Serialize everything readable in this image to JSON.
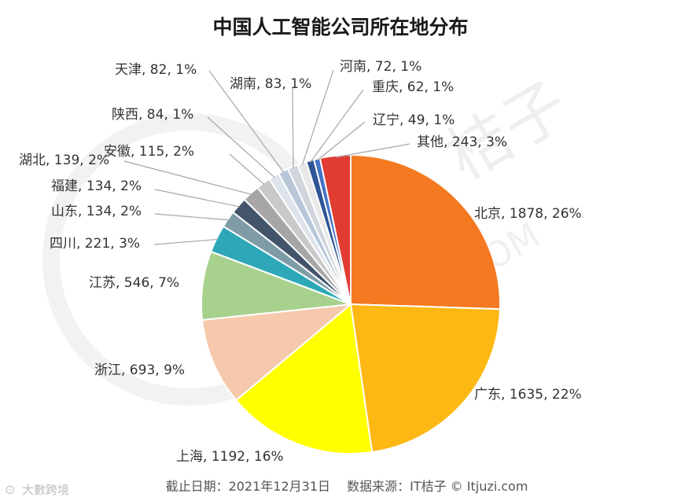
{
  "chart_data": {
    "type": "pie",
    "title": "中国人工智能公司所在地分布",
    "slices": [
      {
        "name": "北京",
        "value": 1878,
        "percent": "26%",
        "color": "#F47920"
      },
      {
        "name": "广东",
        "value": 1635,
        "percent": "22%",
        "color": "#FDB813"
      },
      {
        "name": "上海",
        "value": 1192,
        "percent": "16%",
        "color": "#FFFF00"
      },
      {
        "name": "浙江",
        "value": 693,
        "percent": "9%",
        "color": "#F6C9AC"
      },
      {
        "name": "江苏",
        "value": 546,
        "percent": "7%",
        "color": "#A9D18E"
      },
      {
        "name": "四川",
        "value": 221,
        "percent": "3%",
        "color": "#2EA8B8"
      },
      {
        "name": "山东",
        "value": 134,
        "percent": "2%",
        "color": "#7F9CA6"
      },
      {
        "name": "福建",
        "value": 134,
        "percent": "2%",
        "color": "#44546A"
      },
      {
        "name": "湖北",
        "value": 139,
        "percent": "2%",
        "color": "#A6A6A6"
      },
      {
        "name": "安徽",
        "value": 115,
        "percent": "2%",
        "color": "#C9C9C9"
      },
      {
        "name": "陕西",
        "value": 84,
        "percent": "1%",
        "color": "#DDE3EA"
      },
      {
        "name": "天津",
        "value": 82,
        "percent": "1%",
        "color": "#B7C7D9"
      },
      {
        "name": "湖南",
        "value": 83,
        "percent": "1%",
        "color": "#D0D5DB"
      },
      {
        "name": "河南",
        "value": 72,
        "percent": "1%",
        "color": "#E8E8E8"
      },
      {
        "name": "重庆",
        "value": 62,
        "percent": "1%",
        "color": "#2F5597"
      },
      {
        "name": "辽宁",
        "value": 49,
        "percent": "1%",
        "color": "#4472C4"
      },
      {
        "name": "其他",
        "value": 243,
        "percent": "3%",
        "color": "#E03C31"
      }
    ]
  },
  "footer": "截止日期：2021年12月31日　 数据来源：IT桔子 © Itjuzi.com",
  "source_mark": "大數跨境"
}
